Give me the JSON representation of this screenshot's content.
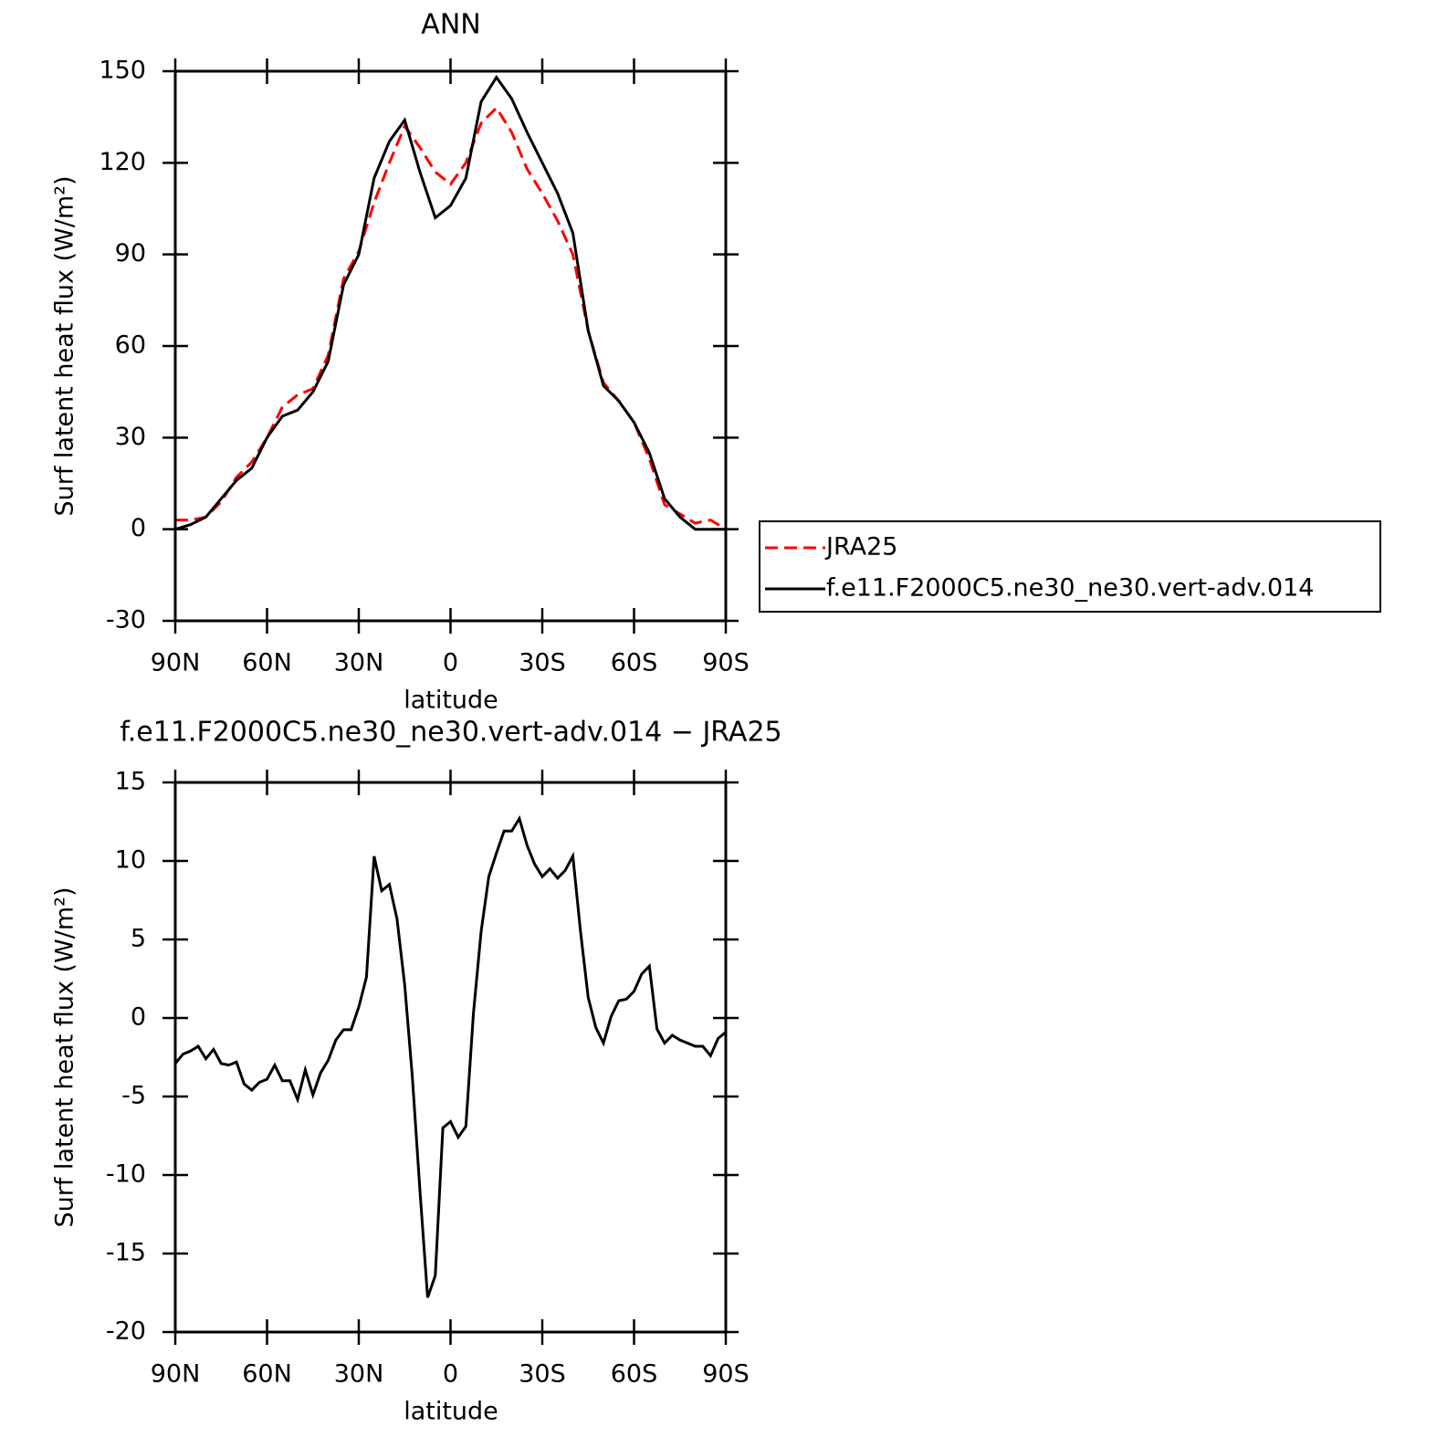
{
  "chart_data": [
    {
      "type": "line",
      "title": "ANN",
      "xlabel": "latitude",
      "ylabel": "Surf latent heat flux (W/m²)",
      "x": [
        90,
        85,
        80,
        75,
        70,
        65,
        60,
        55,
        50,
        45,
        40,
        35,
        30,
        25,
        20,
        15,
        10,
        5,
        0,
        -5,
        -10,
        -15,
        -20,
        -25,
        -30,
        -35,
        -40,
        -45,
        -50,
        -55,
        -60,
        -65,
        -70,
        -75,
        -80,
        -85,
        -90
      ],
      "series": [
        {
          "name": "JRA25",
          "color": "#ff0000",
          "linestyle": "dashed",
          "values": [
            3,
            3,
            4,
            9,
            17,
            22,
            30,
            40,
            44,
            46,
            57,
            82,
            91,
            107,
            120,
            132,
            125,
            117,
            113,
            120,
            133,
            138,
            130,
            118,
            110,
            101,
            90,
            65,
            48,
            42,
            35,
            23,
            8,
            5,
            2,
            3,
            0
          ]
        },
        {
          "name": "f.e11.F2000C5.ne30_ne30.vert-adv.014",
          "color": "#000000",
          "linestyle": "solid",
          "values": [
            0,
            1.5,
            4,
            10,
            16,
            20,
            30,
            37,
            39,
            45,
            55,
            80,
            90,
            115,
            127,
            134,
            117,
            102,
            106,
            115,
            140,
            148,
            141,
            130,
            120,
            110,
            97,
            65,
            47,
            42,
            35,
            25,
            10,
            4,
            0,
            0,
            0
          ]
        }
      ],
      "xlim": [
        90,
        -90
      ],
      "xticks": [
        {
          "value": 90,
          "label": "90N"
        },
        {
          "value": 60,
          "label": "60N"
        },
        {
          "value": 30,
          "label": "30N"
        },
        0,
        {
          "value": -30,
          "label": "30S"
        },
        {
          "value": -60,
          "label": "60S"
        },
        {
          "value": -90,
          "label": "90S"
        }
      ],
      "ylim": [
        -30,
        150
      ],
      "yticks": [
        -30,
        0,
        30,
        60,
        90,
        120,
        150
      ],
      "legend": "right"
    },
    {
      "type": "line",
      "title": "f.e11.F2000C5.ne30_ne30.vert-adv.014 − JRA25",
      "xlabel": "latitude",
      "ylabel": "Surf latent heat flux (W/m²)",
      "x": [
        90,
        87.5,
        85,
        82.5,
        80,
        77.5,
        75,
        72.5,
        70,
        67.5,
        65,
        62.5,
        60,
        57.5,
        55,
        52.5,
        50,
        47.5,
        45,
        42.5,
        40,
        37.5,
        35,
        32.5,
        30,
        27.5,
        25,
        22.5,
        20,
        17.5,
        15,
        12.5,
        10,
        7.5,
        5,
        2.5,
        0,
        -2.5,
        -5,
        -7.5,
        -10,
        -12.5,
        -15,
        -17.5,
        -20,
        -22.5,
        -25,
        -27.5,
        -30,
        -32.5,
        -35,
        -37.5,
        -40,
        -42.5,
        -45,
        -47.5,
        -50,
        -52.5,
        -55,
        -57.5,
        -60,
        -62.5,
        -65,
        -67.5,
        -70,
        -72.5,
        -75,
        -77.5,
        -80,
        -82.5,
        -85,
        -87.5,
        -90
      ],
      "values": [
        -2.9,
        -2.3,
        -2.1,
        -1.8,
        -2.6,
        -2.0,
        -2.9,
        -3.0,
        -2.8,
        -4.2,
        -4.6,
        -4.1,
        -3.9,
        -3.0,
        -4.0,
        -4.0,
        -5.2,
        -3.3,
        -4.9,
        -3.5,
        -2.7,
        -1.4,
        -0.75,
        -0.75,
        0.7,
        2.6,
        10.3,
        8.1,
        8.5,
        6.3,
        2.1,
        -3.7,
        -11,
        -17.8,
        -16.4,
        -7.0,
        -6.6,
        -7.6,
        -6.9,
        0.3,
        5.5,
        9.0,
        10.5,
        11.9,
        11.9,
        12.7,
        11.0,
        9.8,
        9.0,
        9.5,
        8.9,
        9.4,
        10.3,
        5.5,
        1.3,
        -0.6,
        -1.6,
        0.1,
        1.1,
        1.2,
        1.7,
        2.8,
        3.3,
        -0.7,
        -1.6,
        -1.1,
        -1.4,
        -1.6,
        -1.8,
        -1.8,
        -2.4,
        -1.3,
        -0.9
      ],
      "color": "#000000",
      "xlim": [
        90,
        -90
      ],
      "xticks": [
        {
          "value": 90,
          "label": "90N"
        },
        {
          "value": 60,
          "label": "60N"
        },
        {
          "value": 30,
          "label": "30N"
        },
        0,
        {
          "value": -30,
          "label": "30S"
        },
        {
          "value": -60,
          "label": "60S"
        },
        {
          "value": -90,
          "label": "90S"
        }
      ],
      "ylim": [
        -20,
        15
      ],
      "yticks": [
        -20,
        -15,
        -10,
        -5,
        0,
        5,
        10,
        15
      ]
    }
  ]
}
